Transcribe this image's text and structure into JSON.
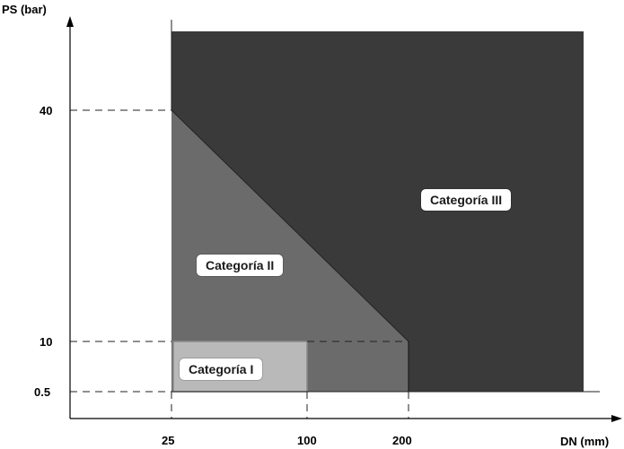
{
  "chart_data": {
    "type": "area",
    "title": "",
    "xlabel": "DN (mm)",
    "ylabel": "PS (bar)",
    "x_ticks": [
      "25",
      "100",
      "200"
    ],
    "y_ticks": [
      "0.5",
      "10",
      "40"
    ],
    "regions": [
      {
        "label": "Categoría III",
        "color": "#3a3a3a",
        "polygon": [
          [
            "25",
            "0.5"
          ],
          [
            "25",
            "40"
          ],
          [
            "200",
            "10"
          ],
          [
            "200",
            "0.5"
          ]
        ]
      },
      {
        "label": "Categoría II",
        "color": "#6b6b6b",
        "polygon": [
          [
            "25",
            "0.5"
          ],
          [
            "25",
            "40"
          ],
          [
            "200",
            "10"
          ],
          [
            "200",
            "0.5"
          ]
        ]
      },
      {
        "label": "Categoría I",
        "color": "#b9b9b9",
        "polygon": [
          [
            "25",
            "0.5"
          ],
          [
            "25",
            "10"
          ],
          [
            "100",
            "10"
          ],
          [
            "100",
            "0.5"
          ]
        ]
      }
    ],
    "dashed_reference_lines": {
      "horizontal_at": [
        "0.5",
        "10",
        "40"
      ],
      "vertical_at": [
        "25",
        "100",
        "200"
      ]
    },
    "colors": {
      "cat1": "#b9b9b9",
      "cat1_border": "#8a8a8a",
      "cat2": "#6b6b6b",
      "cat3": "#3a3a3a"
    }
  }
}
